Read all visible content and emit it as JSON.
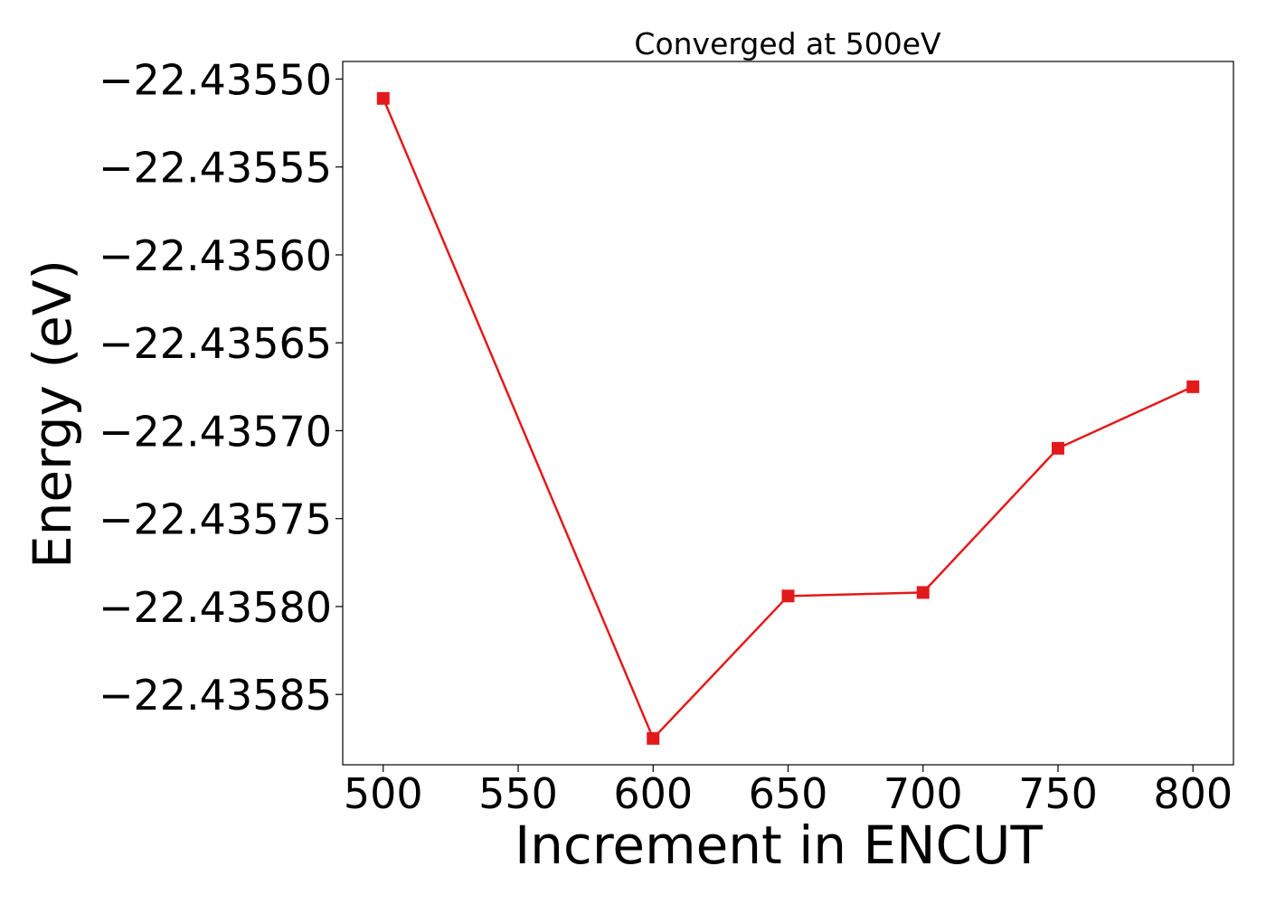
{
  "chart_data": {
    "type": "line",
    "title": "Converged at 500eV",
    "xlabel": "Increment in ENCUT",
    "ylabel": "Energy (eV)",
    "x": [
      500,
      600,
      650,
      700,
      750,
      800
    ],
    "series": [
      {
        "values": [
          -22.435511,
          -22.435875,
          -22.435794,
          -22.435792,
          -22.43571,
          -22.435675
        ],
        "color": "#e31a1c",
        "marker": "square"
      }
    ],
    "xlim": [
      485,
      815
    ],
    "ylim": [
      -22.43589,
      -22.43549
    ],
    "xticks": [
      500,
      550,
      600,
      650,
      700,
      750,
      800
    ],
    "xtick_labels": [
      "500",
      "550",
      "600",
      "650",
      "700",
      "750",
      "800"
    ],
    "yticks": [
      -22.4355,
      -22.43555,
      -22.4356,
      -22.43565,
      -22.4357,
      -22.43575,
      -22.4358,
      -22.43585
    ],
    "ytick_labels": [
      "−22.43550",
      "−22.43555",
      "−22.43560",
      "−22.43565",
      "−22.43570",
      "−22.43575",
      "−22.43580",
      "−22.43585"
    ],
    "grid": false,
    "legend": "none"
  }
}
